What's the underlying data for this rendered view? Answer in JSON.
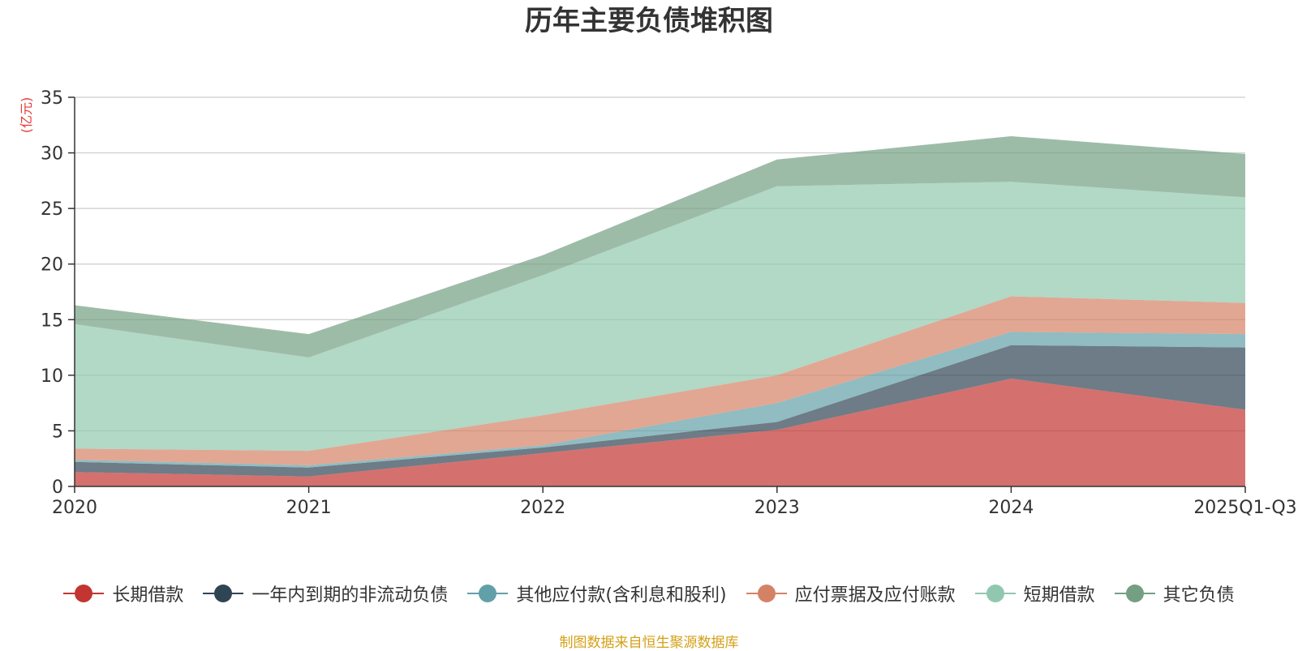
{
  "chart_data": {
    "type": "area",
    "stacked": true,
    "title": "历年主要负债堆积图",
    "ylabel": "(亿元)",
    "xlabel": "",
    "categories": [
      "2020",
      "2021",
      "2022",
      "2023",
      "2024",
      "2025Q1-Q3"
    ],
    "ylim": [
      0,
      35
    ],
    "yticks": [
      0,
      5,
      10,
      15,
      20,
      25,
      30,
      35
    ],
    "grid": true,
    "legend_position": "bottom",
    "series": [
      {
        "name": "长期借款",
        "color": "#c23531",
        "values": [
          1.3,
          0.9,
          3.0,
          5.1,
          9.7,
          6.9
        ]
      },
      {
        "name": "一年内到期的非流动负债",
        "color": "#2f4554",
        "values": [
          0.9,
          0.8,
          0.5,
          0.7,
          3.0,
          5.6
        ]
      },
      {
        "name": "其他应付款(含利息和股利)",
        "color": "#61a0a8",
        "values": [
          0.2,
          0.2,
          0.2,
          1.7,
          1.2,
          1.2
        ]
      },
      {
        "name": "应付票据及应付账款",
        "color": "#d48265",
        "values": [
          1.0,
          1.3,
          2.7,
          2.5,
          3.2,
          2.8
        ]
      },
      {
        "name": "短期借款",
        "color": "#91c7ae",
        "values": [
          11.2,
          8.4,
          12.6,
          17.0,
          10.3,
          9.5
        ]
      },
      {
        "name": "其它负债",
        "color": "#749f83",
        "values": [
          1.7,
          2.1,
          1.8,
          2.4,
          4.1,
          3.9
        ]
      }
    ]
  },
  "source_note": "制图数据来自恒生聚源数据库"
}
